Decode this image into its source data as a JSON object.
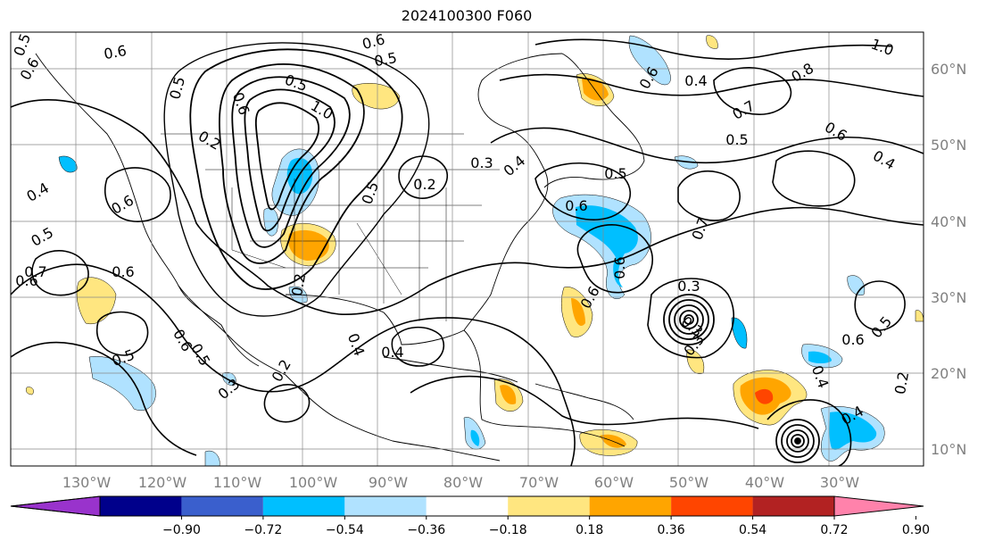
{
  "title": "2024100300 F060",
  "lon_labels": [
    "130°W",
    "120°W",
    "110°W",
    "100°W",
    "90°W",
    "80°W",
    "70°W",
    "60°W",
    "50°W",
    "40°W",
    "30°W"
  ],
  "lat_labels": [
    "60°N",
    "50°N",
    "40°N",
    "30°N",
    "20°N",
    "10°N"
  ],
  "colorbar": {
    "ticks": [
      "−0.90",
      "−0.72",
      "−0.54",
      "−0.36",
      "−0.18",
      "0.18",
      "0.36",
      "0.54",
      "0.72",
      "0.90"
    ],
    "colors": [
      "#9933cc",
      "#00008b",
      "#3a5fcd",
      "#00bfff",
      "#b0e2ff",
      "#ffffff",
      "#ffe680",
      "#ffa500",
      "#ff4500",
      "#b22222",
      "#ff82ab"
    ]
  },
  "contour_labels": [
    "0.6",
    "0.6",
    "0.5",
    "0.5",
    "0.6",
    "0.5",
    "0.5",
    "1.0",
    "1.0",
    "0.2",
    "0.6",
    "0.4",
    "0.6",
    "0.5",
    "0.7",
    "0.6",
    "0.6",
    "0.3",
    "0.4",
    "0.5",
    "0.6",
    "0.5",
    "0.2",
    "0.2",
    "0.6",
    "0.6",
    "0.3",
    "0.5",
    "0.2",
    "0.3",
    "0.4",
    "0.4",
    "0.3",
    "0.5",
    "0.6",
    "0.8",
    "0.4",
    "0.7",
    "0.5",
    "0.6",
    "0.4",
    "0.7",
    "0.6",
    "0.6",
    "0.5",
    "0.3",
    "0.4",
    "0.2",
    "0.4"
  ]
}
